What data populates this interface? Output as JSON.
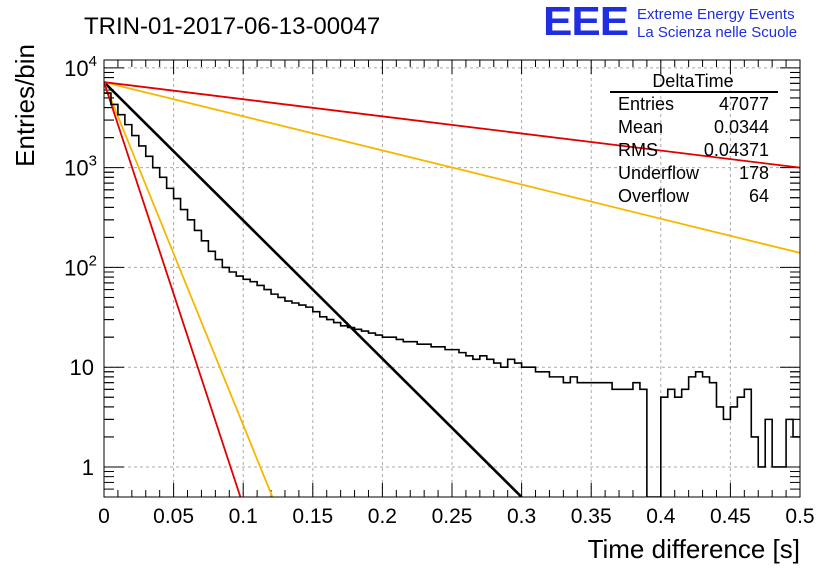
{
  "chart_data": {
    "type": "line",
    "title": "TRIN-01-2017-06-13-00047",
    "xlabel": "Time difference [s]",
    "ylabel": "Entries/bin",
    "xlim": [
      0,
      0.5
    ],
    "ylim": [
      0.5,
      12000
    ],
    "y_scale": "log",
    "grid": true,
    "x_ticks": [
      "0",
      "0.05",
      "0.1",
      "0.15",
      "0.2",
      "0.25",
      "0.3",
      "0.35",
      "0.4",
      "0.45",
      "0.5"
    ],
    "x_tick_values": [
      0,
      0.05,
      0.1,
      0.15,
      0.2,
      0.25,
      0.3,
      0.35,
      0.4,
      0.45,
      0.5
    ],
    "y_ticks": [
      {
        "value": 1,
        "base": "1",
        "exp": ""
      },
      {
        "value": 10,
        "base": "10",
        "exp": ""
      },
      {
        "value": 100,
        "base": "10",
        "exp": "2"
      },
      {
        "value": 1000,
        "base": "10",
        "exp": "3"
      },
      {
        "value": 10000,
        "base": "10",
        "exp": "4"
      }
    ],
    "histogram": {
      "bin_width": 0.005,
      "color": "#000000",
      "counts": [
        5600,
        4300,
        3400,
        2700,
        2100,
        1650,
        1300,
        1000,
        800,
        620,
        490,
        380,
        300,
        235,
        185,
        145,
        120,
        100,
        90,
        82,
        76,
        72,
        66,
        60,
        54,
        50,
        46,
        44,
        42,
        40,
        36,
        32,
        30,
        28,
        26,
        25,
        24,
        23,
        22,
        21,
        20,
        20,
        19,
        18,
        18,
        17,
        17,
        16,
        16,
        15,
        15,
        14,
        13,
        12,
        13,
        12,
        11,
        10,
        12,
        11,
        10,
        10,
        9,
        9,
        8,
        8,
        7,
        8,
        7,
        7,
        7,
        7,
        7,
        6,
        6,
        6,
        7,
        6,
        0.4,
        0.4,
        5,
        6,
        5,
        6,
        8,
        9,
        8,
        7,
        4,
        3,
        4,
        5,
        6,
        2,
        1,
        3,
        1,
        1,
        3,
        2
      ]
    },
    "fits": [
      {
        "color": "#000000",
        "values": [
          [
            0,
            7200
          ],
          [
            0.3,
            0.5
          ]
        ]
      },
      {
        "color": "#f5b800",
        "values": [
          [
            0,
            7200
          ],
          [
            0.121,
            0.5
          ]
        ]
      },
      {
        "color": "#e00000",
        "values": [
          [
            0,
            7200
          ],
          [
            0.098,
            0.5
          ]
        ]
      },
      {
        "color": "#f5b800",
        "values": [
          [
            0,
            7200
          ],
          [
            0.5,
            140
          ]
        ]
      },
      {
        "color": "#e00000",
        "values": [
          [
            0,
            7200
          ],
          [
            0.5,
            1000
          ]
        ]
      }
    ],
    "stats_box": {
      "title": "DeltaTime",
      "rows": [
        {
          "label": "Entries",
          "value": "47077"
        },
        {
          "label": "Mean",
          "value": "0.0344"
        },
        {
          "label": "RMS",
          "value": "0.04371"
        },
        {
          "label": "Underflow",
          "value": "178"
        },
        {
          "label": "Overflow",
          "value": "64"
        }
      ]
    }
  },
  "logo": {
    "text": "EEE",
    "line1": "Extreme Energy Events",
    "line2": "La Scienza nelle Scuole",
    "color": "#1f2ee0"
  }
}
